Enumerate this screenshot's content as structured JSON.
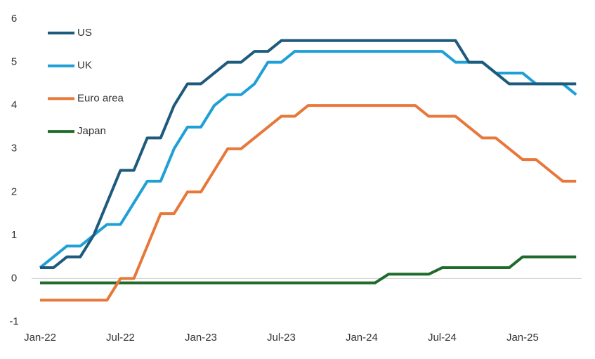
{
  "chart_data": {
    "type": "line",
    "categories": [
      "Jan-22",
      null,
      null,
      null,
      null,
      null,
      "Jul-22",
      null,
      null,
      null,
      null,
      null,
      "Jan-23",
      null,
      null,
      null,
      null,
      null,
      "Jul-23",
      null,
      null,
      null,
      null,
      null,
      "Jan-24",
      null,
      null,
      null,
      null,
      null,
      "Jul-24",
      null,
      null,
      null,
      null,
      null,
      "Jan-25",
      null,
      null,
      null,
      null
    ],
    "series": [
      {
        "name": "US",
        "color": "#1d5a7c",
        "values": [
          0.25,
          0.25,
          0.5,
          0.5,
          1.0,
          1.75,
          2.5,
          2.5,
          3.25,
          3.25,
          4.0,
          4.5,
          4.5,
          4.75,
          5.0,
          5.0,
          5.25,
          5.25,
          5.5,
          5.5,
          5.5,
          5.5,
          5.5,
          5.5,
          5.5,
          5.5,
          5.5,
          5.5,
          5.5,
          5.5,
          5.5,
          5.5,
          5.0,
          5.0,
          4.75,
          4.5,
          4.5,
          4.5,
          4.5,
          4.5,
          4.5
        ]
      },
      {
        "name": "UK",
        "color": "#1ea0d6",
        "values": [
          0.25,
          0.5,
          0.75,
          0.75,
          1.0,
          1.25,
          1.25,
          1.75,
          2.25,
          2.25,
          3.0,
          3.5,
          3.5,
          4.0,
          4.25,
          4.25,
          4.5,
          5.0,
          5.0,
          5.25,
          5.25,
          5.25,
          5.25,
          5.25,
          5.25,
          5.25,
          5.25,
          5.25,
          5.25,
          5.25,
          5.25,
          5.0,
          5.0,
          5.0,
          4.75,
          4.75,
          4.75,
          4.5,
          4.5,
          4.5,
          4.25
        ]
      },
      {
        "name": "Euro area",
        "color": "#e8773a",
        "values": [
          -0.5,
          -0.5,
          -0.5,
          -0.5,
          -0.5,
          -0.5,
          0,
          0,
          0.75,
          1.5,
          1.5,
          2.0,
          2.0,
          2.5,
          3.0,
          3.0,
          3.25,
          3.5,
          3.75,
          3.75,
          4.0,
          4.0,
          4.0,
          4.0,
          4.0,
          4.0,
          4.0,
          4.0,
          4.0,
          3.75,
          3.75,
          3.75,
          3.5,
          3.25,
          3.25,
          3.0,
          2.75,
          2.75,
          2.5,
          2.25,
          2.25
        ]
      },
      {
        "name": "Japan",
        "color": "#1f6b2a",
        "values": [
          -0.1,
          -0.1,
          -0.1,
          -0.1,
          -0.1,
          -0.1,
          -0.1,
          -0.1,
          -0.1,
          -0.1,
          -0.1,
          -0.1,
          -0.1,
          -0.1,
          -0.1,
          -0.1,
          -0.1,
          -0.1,
          -0.1,
          -0.1,
          -0.1,
          -0.1,
          -0.1,
          -0.1,
          -0.1,
          -0.1,
          0.1,
          0.1,
          0.1,
          0.1,
          0.25,
          0.25,
          0.25,
          0.25,
          0.25,
          0.25,
          0.5,
          0.5,
          0.5,
          0.5,
          0.5
        ]
      }
    ],
    "ylim": [
      -1,
      6
    ],
    "yticks": [
      -1,
      0,
      1,
      2,
      3,
      4,
      5,
      6
    ],
    "grid": false
  }
}
